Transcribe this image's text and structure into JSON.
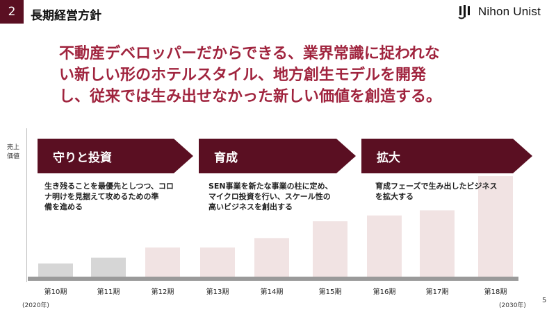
{
  "header": {
    "section_number": "2",
    "title": "長期経営方針",
    "logo_text": "Nihon Unist"
  },
  "statement": {
    "lines": [
      "不動産デベロッパーだからできる、業界常識に捉われな",
      "い新しい形のホテルスタイル、地方創生モデルを開発",
      "し、従来では生み出せなかった新しい価値を創造する。"
    ]
  },
  "y_axis_label": [
    "売上",
    "価値"
  ],
  "phases": [
    {
      "label": "守りと投資",
      "description": [
        "生き残ることを最優先としつつ、コロ",
        "ナ明けを見据えて攻めるための準",
        "備を進める"
      ]
    },
    {
      "label": "育成",
      "description": [
        "SEN事業を新たな事業の柱に定め、",
        "マイクロ投資を行い、スケール性の",
        "高いビジネスを創出する"
      ]
    },
    {
      "label": "拡大",
      "description": [
        "育成フェーズで生み出したビジネス",
        "を拡大する"
      ]
    }
  ],
  "colors": {
    "accent": "#5a0f22",
    "statement_text": "#a0243e",
    "past_bar": "#d6d6d6",
    "future_bar": "#f1e3e3",
    "baseline": "#9a9a9a"
  },
  "chart_data": {
    "type": "bar",
    "categories": [
      "第10期",
      "第11期",
      "第12期",
      "第13期",
      "第14期",
      "第15期",
      "第16期",
      "第17期",
      "第18期"
    ],
    "values": [
      19,
      27,
      41,
      41,
      54,
      77,
      85,
      92,
      139
    ],
    "value_scale_note": "relative height, unitless",
    "ylim": [
      0,
      200
    ],
    "bar_style": [
      "past",
      "past",
      "future",
      "future",
      "future",
      "future",
      "future",
      "future",
      "future"
    ],
    "start_label": "(2020年)",
    "end_label": "(2030年)",
    "ylabel": "売上 価値",
    "grid": false
  },
  "page_number": "5"
}
